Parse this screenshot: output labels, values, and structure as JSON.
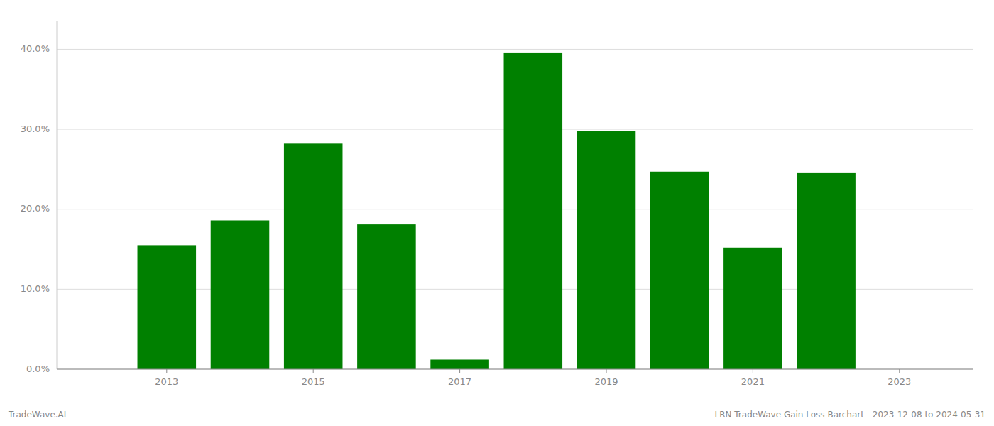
{
  "chart_data": {
    "type": "bar",
    "x": [
      2013,
      2014,
      2015,
      2016,
      2017,
      2018,
      2019,
      2020,
      2021,
      2022
    ],
    "values": [
      0.155,
      0.186,
      0.282,
      0.181,
      0.012,
      0.396,
      0.298,
      0.247,
      0.152,
      0.246
    ],
    "color": "#008000",
    "xlim": [
      2011.5,
      2024.0
    ],
    "xticks": [
      2013,
      2015,
      2017,
      2019,
      2021,
      2023
    ],
    "ylim": [
      0,
      0.435
    ],
    "yticks": [
      {
        "value": 0.0,
        "label": "0.0%"
      },
      {
        "value": 0.1,
        "label": "10.0%"
      },
      {
        "value": 0.2,
        "label": "20.0%"
      },
      {
        "value": 0.3,
        "label": "30.0%"
      },
      {
        "value": 0.4,
        "label": "40.0%"
      }
    ],
    "grid": true,
    "annotations": [
      "TradeWave.AI",
      "LRN TradeWave Gain Loss Barchart - 2023-12-08 to 2024-05-31"
    ]
  }
}
